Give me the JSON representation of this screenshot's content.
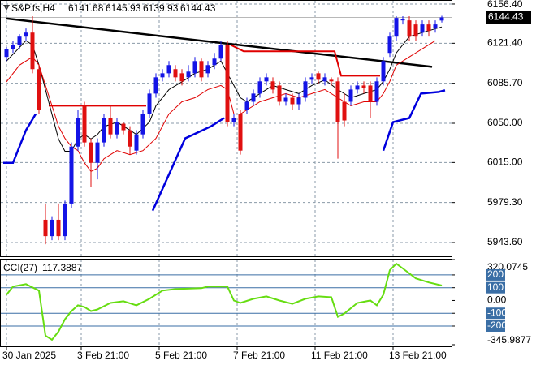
{
  "chart_data": [
    {
      "type": "candlestick",
      "symbol": "S&P.fs,H4",
      "open": [
        6109.2,
        6116.4,
        6120.0,
        6127.3,
        6130.9,
        6098.3,
        5963.9,
        5949.3,
        5963.9,
        5949.3,
        5978.4,
        6029.2,
        6065.6,
        6032.9,
        6014.7,
        6032.9,
        6054.7,
        6040.1,
        6049.6,
        6043.8,
        6025.6,
        6040.1,
        6058.3,
        6076.5,
        6091.0,
        6094.6,
        6098.3,
        6094.6,
        6091.0,
        6094.6,
        6105.5,
        6094.6,
        6101.9,
        6107.7,
        6120.0,
        6051.0,
        6058.3,
        6061.9,
        6069.2,
        6076.5,
        6087.4,
        6087.4,
        6083.7,
        6069.2,
        6072.8,
        6067.0,
        6072.8,
        6088.8,
        6094.6,
        6087.4,
        6088.8,
        6087.4,
        6069.2,
        6069.2,
        6080.1,
        6083.7,
        6083.7,
        6069.2,
        6087.4,
        6112.8,
        6127.3,
        6141.8,
        6141.8,
        6138.2,
        6130.9,
        6138.2,
        6134.6,
        6141.68
      ],
      "high": [
        6118.0,
        6123.7,
        6129.5,
        6134.6,
        6145.5,
        6101.9,
        5978.4,
        5967.0,
        5978.4,
        5981.0,
        6032.9,
        6061.9,
        6069.2,
        6036.5,
        6036.5,
        6058.3,
        6065.6,
        6054.7,
        6051.0,
        6047.4,
        6043.8,
        6061.9,
        6080.1,
        6094.6,
        6098.3,
        6105.5,
        6101.9,
        6098.3,
        6101.9,
        6109.2,
        6107.7,
        6105.5,
        6112.8,
        6123.7,
        6123.7,
        6058.3,
        6061.9,
        6072.8,
        6080.1,
        6091.0,
        6094.6,
        6091.0,
        6087.4,
        6076.5,
        6076.5,
        6076.5,
        6091.0,
        6094.6,
        6096.1,
        6094.6,
        6091.0,
        6091.0,
        6076.5,
        6083.7,
        6087.4,
        6087.4,
        6087.4,
        6091.0,
        6109.2,
        6130.9,
        6145.5,
        6145.5,
        6145.5,
        6141.8,
        6141.8,
        6141.8,
        6141.8,
        6145.93
      ],
      "low": [
        6105.5,
        6112.8,
        6116.4,
        6123.7,
        6094.6,
        6058.3,
        5942.1,
        5945.7,
        5945.7,
        5945.7,
        5974.0,
        6025.6,
        6029.2,
        5992.9,
        6000.0,
        6029.2,
        6036.5,
        6036.5,
        6040.1,
        6022.0,
        6022.0,
        6036.5,
        6054.7,
        6072.8,
        6087.4,
        6091.0,
        6087.4,
        6083.7,
        6087.4,
        6091.0,
        6087.4,
        6091.0,
        6098.3,
        6105.5,
        6047.4,
        6047.4,
        6022.0,
        6058.3,
        6065.6,
        6072.8,
        6083.7,
        6076.5,
        6065.6,
        6065.6,
        6061.9,
        6061.9,
        6069.2,
        6085.0,
        6085.0,
        6083.7,
        6083.7,
        6018.4,
        6047.4,
        6065.6,
        6076.5,
        6076.5,
        6054.7,
        6065.6,
        6083.7,
        6109.2,
        6123.7,
        6138.2,
        6123.7,
        6123.7,
        6127.3,
        6127.3,
        6130.9,
        6139.93
      ],
      "close": [
        6116.4,
        6120.0,
        6127.3,
        6130.9,
        6098.3,
        6061.9,
        5949.3,
        5963.9,
        5949.3,
        5978.4,
        6029.2,
        6054.7,
        6032.9,
        6014.7,
        6032.9,
        6054.7,
        6040.1,
        6051.0,
        6043.8,
        6029.2,
        6040.1,
        6058.3,
        6076.5,
        6091.0,
        6094.6,
        6101.9,
        6091.0,
        6087.4,
        6096.1,
        6105.5,
        6091.0,
        6101.9,
        6107.7,
        6120.0,
        6051.0,
        6054.7,
        6025.6,
        6069.2,
        6076.5,
        6087.4,
        6091.0,
        6080.1,
        6069.2,
        6072.8,
        6067.0,
        6072.8,
        6087.4,
        6091.0,
        6088.8,
        6091.0,
        6087.4,
        6051.0,
        6052.5,
        6080.1,
        6083.7,
        6081.5,
        6069.2,
        6087.4,
        6105.5,
        6127.3,
        6144.0,
        6143.0,
        6127.3,
        6127.3,
        6138.2,
        6132.4,
        6138.2,
        6144.43
      ],
      "up_color": "#1414e6",
      "down_color": "#e01010",
      "lines": [
        {
          "color": "#000000",
          "width": 2.5,
          "x": [
            0,
            65.5
          ],
          "values": [
            6143.4,
            6100.4
          ]
        },
        {
          "color": "#e00000",
          "width": 2,
          "x": [
            6.5,
            21.5,
            null,
            34.5,
            36.5,
            50.5,
            51.5,
            57.5
          ],
          "values": [
            6065.6,
            6065.6,
            null,
            6120.0,
            6114.2,
            6114.2,
            6092.4,
            6092.4
          ]
        },
        {
          "color": "#000000",
          "width": 1,
          "x": [
            0,
            3,
            4,
            5,
            6,
            7,
            8,
            9,
            10,
            11,
            12,
            13,
            14,
            15,
            17,
            19,
            20,
            22,
            23,
            25,
            27,
            29,
            31,
            33,
            34,
            35,
            36,
            37,
            39,
            41,
            43,
            45,
            47,
            49,
            51,
            53,
            55,
            57,
            58,
            59,
            60,
            62,
            64,
            67
          ],
          "values": [
            6105.5,
            6123.7,
            6120.0,
            6101.9,
            6080.0,
            6058.0,
            6036.0,
            6025.0,
            6025.0,
            6036.0,
            6040.0,
            6036.0,
            6040.0,
            6047.0,
            6051.0,
            6043.8,
            6040.0,
            6051.0,
            6065.6,
            6080.0,
            6087.0,
            6094.6,
            6098.3,
            6105.5,
            6094.6,
            6083.7,
            6072.8,
            6069.2,
            6076.5,
            6083.7,
            6080.0,
            6076.5,
            6083.7,
            6088.8,
            6080.0,
            6072.8,
            6076.5,
            6080.0,
            6087.4,
            6098.3,
            6112.8,
            6127.3,
            6130.9,
            6136.0
          ]
        },
        {
          "color": "#e00000",
          "width": 1,
          "x": [
            0,
            2,
            4,
            5,
            6,
            7,
            8,
            9,
            10,
            11,
            12,
            13,
            14,
            15,
            17,
            19,
            21,
            23,
            25,
            27,
            29,
            31,
            33,
            34,
            35,
            36,
            37,
            39,
            41,
            43,
            45,
            47,
            49,
            51,
            53,
            55,
            57,
            58,
            59,
            60,
            62,
            64,
            66
          ],
          "values": [
            6087.0,
            6101.9,
            6109.2,
            6101.9,
            6083.7,
            6065.6,
            6047.4,
            6036.5,
            6029.2,
            6025.6,
            6014.7,
            6007.0,
            6010.0,
            6018.4,
            6025.6,
            6022.0,
            6025.6,
            6036.5,
            6058.3,
            6069.2,
            6072.8,
            6080.1,
            6083.7,
            6080.1,
            6058.3,
            6058.3,
            6061.9,
            6069.2,
            6072.8,
            6076.5,
            6072.8,
            6076.5,
            6080.1,
            6072.8,
            6065.6,
            6069.2,
            6069.2,
            6076.5,
            6087.4,
            6101.9,
            6109.2,
            6116.4,
            6123.7
          ]
        },
        {
          "color": "#0000dd",
          "width": 2.5,
          "x": [
            -0.5,
            1,
            2,
            3,
            4.5,
            null,
            22.5,
            27.5,
            31.5,
            33.5,
            null,
            58,
            59.5,
            62,
            63.8,
            66.5,
            67.5
          ],
          "values": [
            6014.7,
            6014.7,
            6029.2,
            6043.8,
            6058.3,
            null,
            5972.0,
            6036.5,
            6047.4,
            6054.7,
            null,
            6025.6,
            6051.0,
            6054.7,
            6076.5,
            6077.9,
            6079.4
          ]
        }
      ],
      "ylim": [
        5931.3,
        6160.0
      ],
      "yticks": [
        {
          "value": 6156.4,
          "label": "6156.40"
        },
        {
          "value": 6121.4,
          "label": "6121.40"
        },
        {
          "value": 6085.7,
          "label": "6085.70"
        },
        {
          "value": 6050.0,
          "label": "6050.00"
        },
        {
          "value": 6015.0,
          "label": "6015.00"
        },
        {
          "value": 5979.3,
          "label": "5979.30"
        },
        {
          "value": 5943.6,
          "label": "5943.60"
        }
      ],
      "xticks": [
        {
          "value": 0,
          "label": "30 Jan 2025"
        },
        {
          "value": 11.5,
          "label": "3 Feb 21:00"
        },
        {
          "value": 23.5,
          "label": "5 Feb 21:00"
        },
        {
          "value": 35.5,
          "label": "7 Feb 21:00"
        },
        {
          "value": 47.5,
          "label": "11 Feb 21:00"
        },
        {
          "value": 59.5,
          "label": "13 Feb 21:00"
        }
      ],
      "grid": true
    },
    {
      "type": "line",
      "title": "CCI(27)",
      "color": "#66dd11",
      "x": [
        0,
        1,
        3,
        5,
        6,
        7,
        8,
        9,
        10,
        11,
        12,
        13,
        14,
        16,
        18,
        20,
        22,
        24,
        26,
        30,
        31,
        34,
        35,
        36,
        38,
        40,
        42,
        44,
        46,
        48,
        50,
        51,
        52,
        54,
        56,
        57,
        58,
        59,
        60,
        61,
        63,
        65,
        67
      ],
      "values": [
        45,
        109,
        128,
        77,
        -275,
        -307,
        -243,
        -147,
        -83,
        -38,
        -51,
        -83,
        -70,
        -19,
        -6,
        -38,
        13,
        77,
        89,
        96,
        109,
        109,
        0,
        -19,
        13,
        32,
        0,
        -26,
        13,
        32,
        26,
        -128,
        -102,
        -19,
        0,
        -38,
        45,
        237,
        288,
        250,
        173,
        141,
        117.3887
      ],
      "ylim": [
        -345.9877,
        320.0745
      ],
      "yticks": [
        {
          "value": 320.0745,
          "label": "320.0745"
        },
        200,
        100,
        {
          "value": 0,
          "label": "0.00"
        },
        -100,
        -200,
        {
          "value": -345.9877,
          "label": "-345.9877"
        }
      ],
      "levels": [
        200,
        100,
        -100,
        -200
      ],
      "level_color": "#3a6ea5"
    }
  ]
}
